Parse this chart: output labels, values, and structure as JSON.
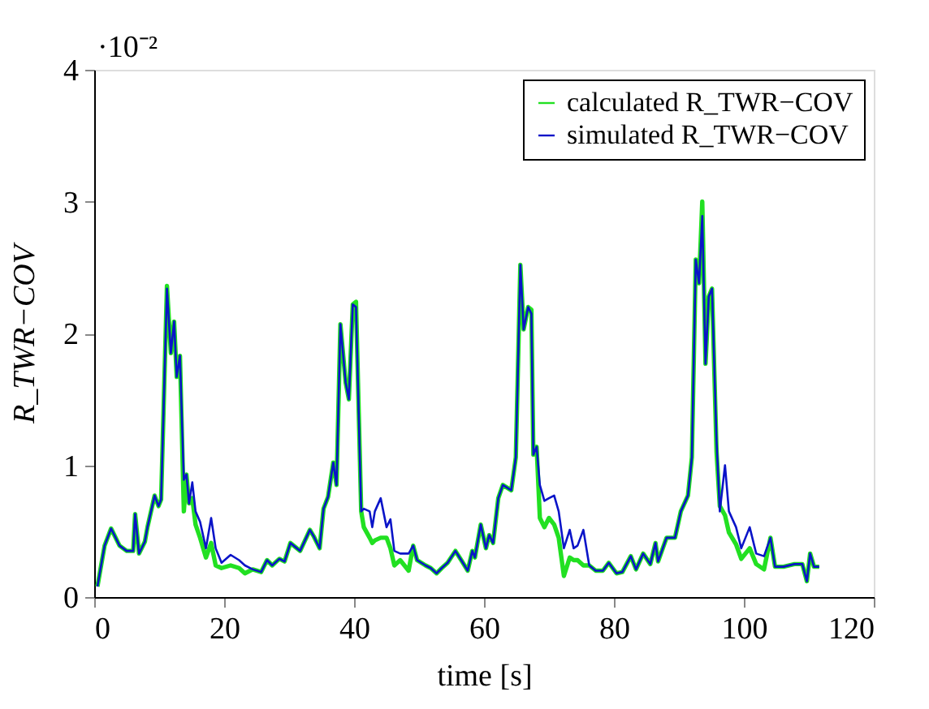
{
  "chart_data": {
    "type": "line",
    "xlabel": "time [s]",
    "ylabel": "R_TWR−COV",
    "xlim": [
      0,
      120
    ],
    "xticks": [
      0,
      20,
      40,
      60,
      80,
      100,
      120
    ],
    "ylim": [
      0,
      4
    ],
    "yticks": [
      0,
      1,
      2,
      3,
      4
    ],
    "annotations": [
      "·10⁻²"
    ],
    "legend": "top right",
    "grid": false,
    "line_style": "solid",
    "x": [
      0.5,
      1.6,
      2.6,
      3.9,
      5.0,
      6.0,
      6.3,
      6.9,
      7.8,
      8.2,
      9.3,
      9.9,
      10.3,
      11.2,
      11.8,
      12.3,
      12.7,
      13.2,
      13.8,
      14.2,
      14.6,
      15.1,
      15.6,
      16.3,
      17.2,
      18.0,
      18.7,
      19.6,
      21.0,
      22.3,
      23.2,
      24.4,
      25.7,
      26.6,
      27.4,
      28.5,
      29.3,
      30.2,
      31.7,
      33.2,
      33.8,
      34.7,
      35.3,
      36.0,
      36.8,
      37.3,
      37.9,
      38.7,
      39.2,
      39.8,
      40.3,
      41.1,
      41.5,
      42.4,
      42.8,
      43.2,
      44.1,
      45.0,
      45.6,
      46.2,
      47.1,
      48.4,
      49.1,
      49.7,
      51.0,
      51.8,
      52.7,
      53.5,
      54.4,
      55.6,
      56.5,
      57.5,
      58.2,
      58.6,
      59.5,
      60.3,
      60.8,
      61.4,
      62.2,
      62.9,
      64.2,
      64.9,
      65.6,
      66.1,
      66.8,
      67.3,
      67.6,
      68.1,
      68.6,
      69.3,
      70.0,
      70.8,
      71.5,
      72.3,
      73.2,
      73.8,
      74.4,
      75.3,
      76.2,
      77.2,
      78.3,
      79.2,
      80.4,
      81.3,
      82.6,
      83.4,
      84.5,
      85.6,
      86.4,
      86.8,
      88.1,
      89.4,
      90.3,
      91.4,
      92.0,
      92.6,
      93.1,
      93.6,
      94.1,
      94.6,
      95.1,
      95.8,
      96.3,
      97.1,
      97.7,
      98.8,
      99.6,
      100.9,
      101.9,
      103.1,
      104.1,
      104.8,
      106.1,
      107.8,
      109.0,
      109.7,
      110.2,
      110.8,
      111.6
    ],
    "series": [
      {
        "name": "calculated R_TWR−COV",
        "color": "#22e022",
        "values": [
          0.08,
          0.39,
          0.52,
          0.39,
          0.35,
          0.35,
          0.63,
          0.33,
          0.42,
          0.53,
          0.77,
          0.69,
          0.74,
          2.36,
          1.85,
          2.09,
          1.67,
          1.83,
          0.65,
          0.93,
          0.71,
          0.75,
          0.55,
          0.45,
          0.3,
          0.41,
          0.24,
          0.22,
          0.24,
          0.22,
          0.18,
          0.21,
          0.19,
          0.28,
          0.24,
          0.29,
          0.27,
          0.41,
          0.35,
          0.51,
          0.46,
          0.37,
          0.67,
          0.76,
          1.02,
          0.85,
          2.07,
          1.63,
          1.5,
          2.22,
          2.24,
          0.65,
          0.53,
          0.45,
          0.41,
          0.43,
          0.45,
          0.45,
          0.37,
          0.24,
          0.28,
          0.2,
          0.39,
          0.28,
          0.24,
          0.22,
          0.18,
          0.22,
          0.26,
          0.35,
          0.28,
          0.2,
          0.35,
          0.3,
          0.55,
          0.37,
          0.47,
          0.41,
          0.75,
          0.85,
          0.81,
          1.06,
          2.52,
          2.03,
          2.2,
          2.18,
          1.08,
          1.14,
          0.6,
          0.53,
          0.6,
          0.55,
          0.45,
          0.16,
          0.3,
          0.28,
          0.28,
          0.24,
          0.24,
          0.2,
          0.2,
          0.26,
          0.18,
          0.19,
          0.31,
          0.21,
          0.33,
          0.25,
          0.41,
          0.27,
          0.45,
          0.45,
          0.65,
          0.77,
          1.06,
          2.56,
          2.38,
          3.0,
          1.77,
          2.28,
          2.34,
          1.1,
          0.69,
          0.62,
          0.49,
          0.4,
          0.29,
          0.37,
          0.25,
          0.21,
          0.45,
          0.23,
          0.23,
          0.25,
          0.25,
          0.12,
          0.33,
          0.23,
          0.23
        ]
      },
      {
        "name": "simulated R_TWR−COV",
        "color": "#0a14c8",
        "values": [
          0.08,
          0.39,
          0.52,
          0.39,
          0.35,
          0.35,
          0.63,
          0.33,
          0.42,
          0.53,
          0.77,
          0.69,
          0.74,
          2.34,
          1.85,
          2.09,
          1.67,
          1.83,
          0.89,
          0.93,
          0.71,
          0.87,
          0.65,
          0.57,
          0.37,
          0.6,
          0.37,
          0.26,
          0.32,
          0.28,
          0.24,
          0.21,
          0.19,
          0.28,
          0.24,
          0.29,
          0.27,
          0.41,
          0.35,
          0.51,
          0.46,
          0.37,
          0.67,
          0.76,
          1.02,
          0.85,
          2.07,
          1.63,
          1.5,
          2.22,
          2.2,
          0.65,
          0.67,
          0.65,
          0.53,
          0.65,
          0.75,
          0.53,
          0.59,
          0.35,
          0.33,
          0.33,
          0.39,
          0.28,
          0.24,
          0.22,
          0.18,
          0.22,
          0.26,
          0.35,
          0.28,
          0.2,
          0.35,
          0.3,
          0.55,
          0.37,
          0.47,
          0.41,
          0.75,
          0.85,
          0.81,
          1.06,
          2.52,
          2.03,
          2.2,
          2.15,
          1.08,
          1.14,
          0.85,
          0.73,
          0.75,
          0.77,
          0.65,
          0.37,
          0.51,
          0.37,
          0.39,
          0.51,
          0.24,
          0.2,
          0.2,
          0.26,
          0.18,
          0.19,
          0.31,
          0.21,
          0.33,
          0.25,
          0.41,
          0.27,
          0.45,
          0.45,
          0.65,
          0.77,
          1.06,
          2.56,
          2.38,
          2.89,
          1.77,
          2.28,
          2.34,
          1.18,
          0.65,
          1.0,
          0.65,
          0.53,
          0.37,
          0.53,
          0.33,
          0.31,
          0.45,
          0.23,
          0.23,
          0.25,
          0.25,
          0.12,
          0.33,
          0.23,
          0.23
        ]
      }
    ]
  }
}
